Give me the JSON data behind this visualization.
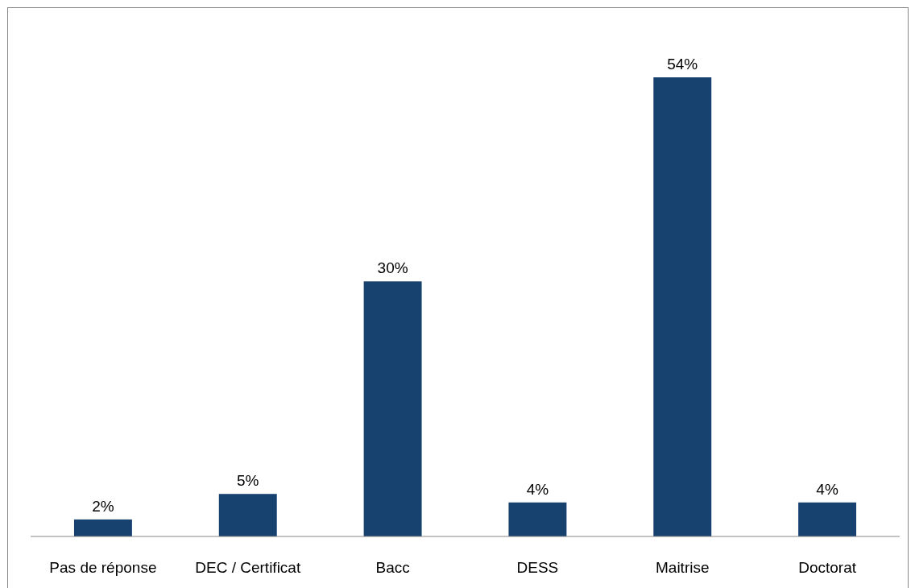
{
  "chart_data": {
    "type": "bar",
    "categories": [
      "Pas de réponse",
      "DEC / Certificat",
      "Bacc",
      "DESS",
      "Maitrise",
      "Doctorat"
    ],
    "values": [
      2,
      5,
      30,
      4,
      54,
      4
    ],
    "color": "#17416f",
    "value_labels": [
      "2%",
      "5%",
      "30%",
      "4%",
      "54%",
      "4%"
    ]
  }
}
